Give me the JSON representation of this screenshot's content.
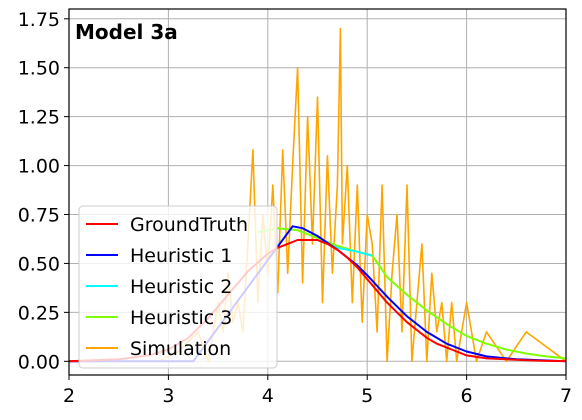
{
  "chart_data": {
    "type": "line",
    "title": "Model 3a",
    "xlabel": "",
    "ylabel": "",
    "xlim": [
      2,
      7
    ],
    "ylim": [
      -0.07,
      1.8
    ],
    "grid": true,
    "legend_position": "bottom-left",
    "x_ticks": [
      "2",
      "3",
      "4",
      "5",
      "6",
      "7"
    ],
    "y_ticks": [
      "0.00",
      "0.25",
      "0.50",
      "0.75",
      "1.00",
      "1.25",
      "1.50",
      "1.75"
    ],
    "series": [
      {
        "name": "GroundTruth",
        "color": "#ff0000",
        "x": [
          2.0,
          2.5,
          2.8,
          3.0,
          3.2,
          3.4,
          3.6,
          3.8,
          4.0,
          4.1,
          4.2,
          4.3,
          4.4,
          4.5,
          4.6,
          4.7,
          4.8,
          4.9,
          5.0,
          5.1,
          5.2,
          5.3,
          5.4,
          5.5,
          5.6,
          5.7,
          5.8,
          5.9,
          6.0,
          6.2,
          6.4,
          6.6,
          6.8,
          7.0
        ],
        "y": [
          0.0,
          0.01,
          0.03,
          0.06,
          0.12,
          0.22,
          0.34,
          0.46,
          0.55,
          0.58,
          0.6,
          0.62,
          0.62,
          0.62,
          0.6,
          0.57,
          0.53,
          0.48,
          0.42,
          0.36,
          0.3,
          0.25,
          0.2,
          0.16,
          0.12,
          0.09,
          0.07,
          0.05,
          0.03,
          0.015,
          0.01,
          0.005,
          0.002,
          0.001
        ]
      },
      {
        "name": "Heuristic 1",
        "color": "#0000ff",
        "x": [
          2.0,
          3.25,
          4.25,
          4.35,
          4.5,
          4.7,
          4.9,
          5.0,
          5.2,
          5.4,
          5.6,
          5.8,
          6.0,
          6.2,
          6.5,
          7.0
        ],
        "y": [
          0.0,
          0.0,
          0.69,
          0.68,
          0.64,
          0.57,
          0.49,
          0.44,
          0.33,
          0.23,
          0.15,
          0.09,
          0.05,
          0.025,
          0.01,
          0.0
        ]
      },
      {
        "name": "Heuristic 2",
        "color": "#00ffff",
        "x": [
          4.5,
          4.7,
          4.9,
          5.05
        ],
        "y": [
          0.62,
          0.58,
          0.56,
          0.54
        ]
      },
      {
        "name": "Heuristic 3",
        "color": "#7fff00",
        "x": [
          3.9,
          4.1,
          4.3,
          4.5,
          4.7,
          4.9,
          5.05,
          5.2,
          5.4,
          5.6,
          5.8,
          6.0,
          6.2,
          6.4,
          6.6,
          6.8,
          7.0
        ],
        "y": [
          0.66,
          0.68,
          0.67,
          0.63,
          0.59,
          0.56,
          0.54,
          0.43,
          0.34,
          0.26,
          0.19,
          0.13,
          0.09,
          0.06,
          0.04,
          0.025,
          0.015
        ]
      },
      {
        "name": "Simulation",
        "color": "#ffa500",
        "x": [
          2.0,
          2.5,
          2.9,
          3.1,
          3.3,
          3.4,
          3.5,
          3.55,
          3.6,
          3.65,
          3.7,
          3.75,
          3.8,
          3.85,
          3.9,
          3.95,
          4.0,
          4.05,
          4.1,
          4.15,
          4.2,
          4.25,
          4.3,
          4.35,
          4.4,
          4.45,
          4.5,
          4.55,
          4.6,
          4.65,
          4.7,
          4.73,
          4.75,
          4.8,
          4.85,
          4.9,
          4.95,
          5.0,
          5.05,
          5.1,
          5.15,
          5.2,
          5.25,
          5.3,
          5.35,
          5.4,
          5.45,
          5.5,
          5.55,
          5.6,
          5.65,
          5.7,
          5.75,
          5.8,
          5.85,
          5.9,
          5.95,
          6.0,
          6.1,
          6.2,
          6.4,
          6.6,
          7.0
        ],
        "y": [
          0.0,
          0.0,
          0.0,
          0.05,
          0.15,
          0.0,
          0.3,
          0.15,
          0.45,
          0.2,
          0.3,
          0.15,
          0.6,
          1.08,
          0.3,
          0.75,
          0.45,
          0.9,
          0.35,
          1.08,
          0.45,
          1.0,
          1.5,
          0.4,
          1.25,
          0.6,
          1.35,
          0.3,
          1.05,
          0.45,
          0.9,
          1.7,
          0.6,
          1.0,
          0.3,
          0.9,
          0.2,
          0.75,
          0.6,
          0.15,
          0.9,
          0.0,
          0.45,
          0.75,
          0.15,
          0.9,
          0.0,
          0.3,
          0.6,
          0.0,
          0.45,
          0.15,
          0.3,
          0.0,
          0.3,
          0.0,
          0.15,
          0.3,
          0.0,
          0.15,
          0.0,
          0.15,
          0.0
        ]
      }
    ]
  }
}
